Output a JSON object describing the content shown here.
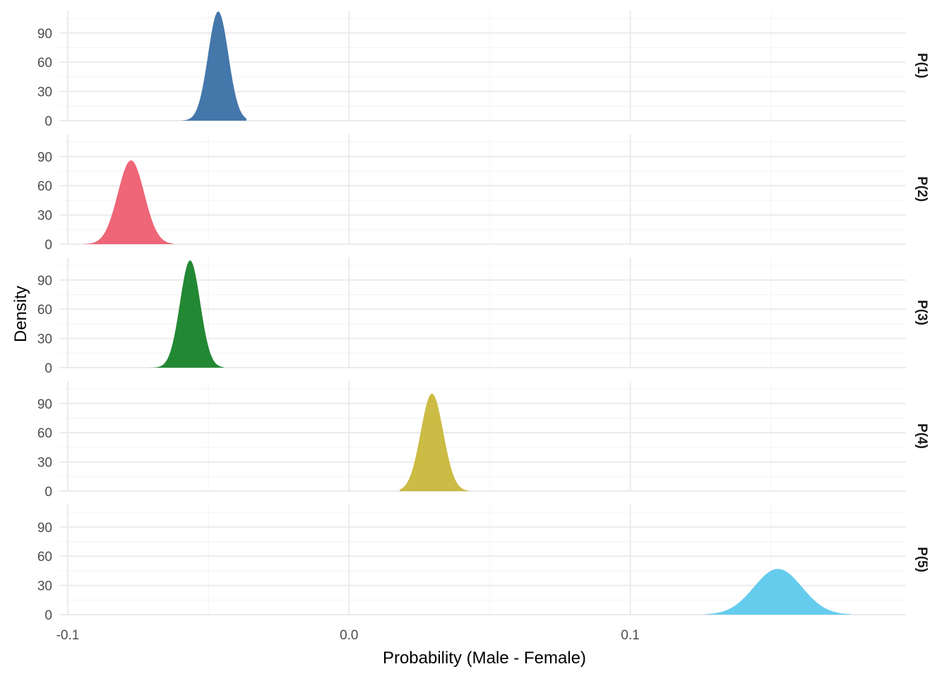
{
  "chart_data": {
    "type": "area",
    "title": "",
    "xlabel": "Probability (Male - Female)",
    "ylabel": "Density",
    "xlim": [
      -0.103,
      0.198
    ],
    "ylim": [
      0,
      113
    ],
    "x_ticks": [
      -0.1,
      0.0,
      0.1
    ],
    "x_tick_labels": [
      "-0.1",
      "0.0",
      "0.1"
    ],
    "y_ticks": [
      0,
      30,
      60,
      90
    ],
    "y_tick_labels": [
      "0",
      "30",
      "60",
      "90"
    ],
    "grid": true,
    "legend": "none",
    "facet_strip_position": "right",
    "series": [
      {
        "name": "P(1)",
        "color": "#4477AA",
        "mean": -0.0465,
        "sd": 0.0036,
        "range": [
          -0.0595,
          -0.0365
        ],
        "peak_density": 112
      },
      {
        "name": "P(2)",
        "color": "#EE6677",
        "mean": -0.0775,
        "sd": 0.0047,
        "range": [
          -0.0945,
          -0.0625
        ],
        "peak_density": 86
      },
      {
        "name": "P(3)",
        "color": "#228833",
        "mean": -0.0565,
        "sd": 0.0036,
        "range": [
          -0.0725,
          -0.0445
        ],
        "peak_density": 110
      },
      {
        "name": "P(4)",
        "color": "#CCBB44",
        "mean": 0.0295,
        "sd": 0.004,
        "range": [
          0.018,
          0.0425
        ],
        "peak_density": 100
      },
      {
        "name": "P(5)",
        "color": "#66CCEE",
        "mean": 0.1525,
        "sd": 0.0085,
        "range": [
          0.1265,
          0.1785
        ],
        "peak_density": 47
      }
    ]
  }
}
